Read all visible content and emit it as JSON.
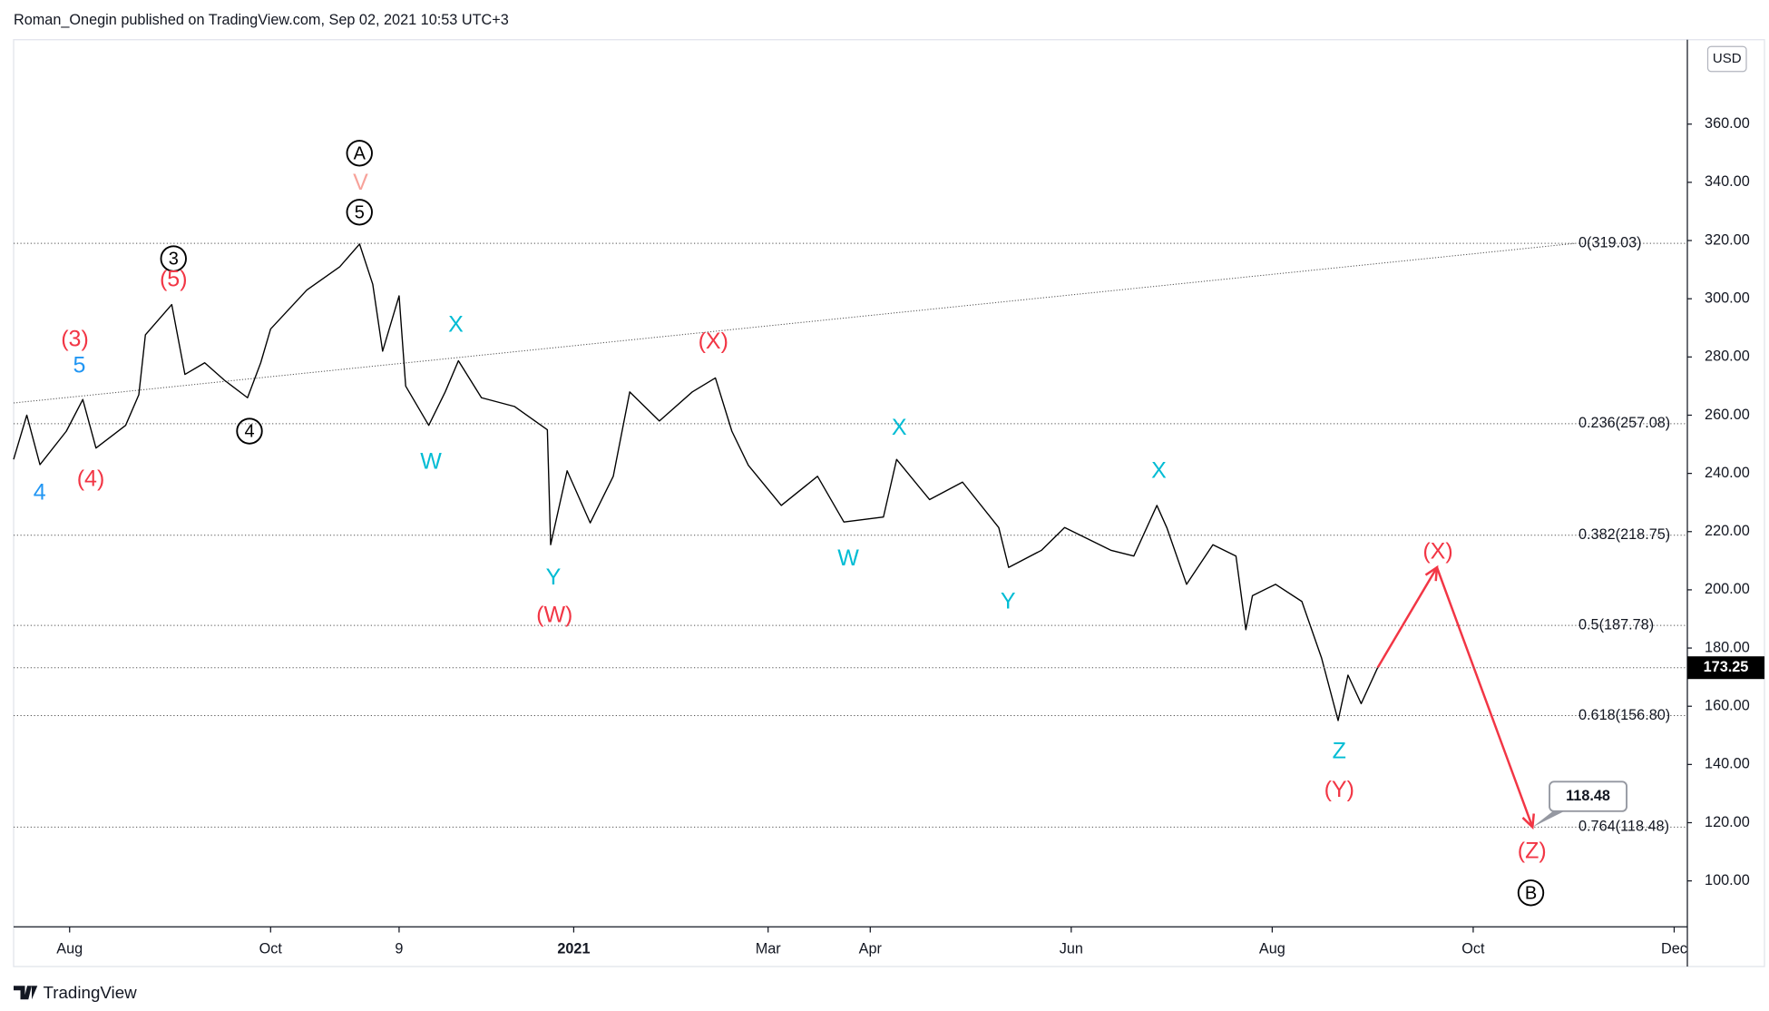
{
  "chart_data": {
    "type": "line",
    "title": "Roman_Onegin published on TradingView.com, Sep 02, 2021 10:53 UTC+3",
    "currency": "USD",
    "footer": "TradingView",
    "xlim": [
      -17,
      491
    ],
    "ylim": [
      85,
      389
    ],
    "xticks": [
      {
        "value": 0,
        "label": "Aug"
      },
      {
        "value": 61,
        "label": "Oct"
      },
      {
        "value": 100,
        "label": "9"
      },
      {
        "value": 153,
        "label": "2021"
      },
      {
        "value": 212,
        "label": "Mar"
      },
      {
        "value": 243,
        "label": "Apr"
      },
      {
        "value": 304,
        "label": "Jun"
      },
      {
        "value": 365,
        "label": "Aug"
      },
      {
        "value": 426,
        "label": "Oct"
      },
      {
        "value": 487,
        "label": "Dec"
      }
    ],
    "yticks": [
      {
        "value": 100,
        "label": "100.00"
      },
      {
        "value": 120,
        "label": "120.00"
      },
      {
        "value": 140,
        "label": "140.00"
      },
      {
        "value": 160,
        "label": "160.00"
      },
      {
        "value": 180,
        "label": "180.00"
      },
      {
        "value": 200,
        "label": "200.00"
      },
      {
        "value": 220,
        "label": "220.00"
      },
      {
        "value": 240,
        "label": "240.00"
      },
      {
        "value": 260,
        "label": "260.00"
      },
      {
        "value": 280,
        "label": "280.00"
      },
      {
        "value": 300,
        "label": "300.00"
      },
      {
        "value": 320,
        "label": "320.00"
      },
      {
        "value": 340,
        "label": "340.00"
      },
      {
        "value": 360,
        "label": "360.00"
      }
    ],
    "series": [
      {
        "color": "#000000",
        "x": [
          -17,
          -13,
          -9,
          -1,
          4,
          8,
          17,
          21,
          23,
          31,
          35,
          41,
          47,
          54,
          58,
          61,
          72,
          82,
          88,
          92,
          95,
          100,
          102,
          109,
          114,
          118,
          125,
          135,
          145,
          146,
          151,
          158,
          165,
          170,
          179,
          189,
          196,
          201,
          206,
          216,
          227,
          235,
          247,
          251,
          261,
          271,
          282,
          285,
          295,
          302,
          316,
          323,
          330,
          333,
          339,
          347,
          354,
          357,
          359,
          366,
          374,
          380,
          385,
          388,
          392,
          397
        ],
        "values": [
          244.8,
          260,
          243,
          254.5,
          265.4,
          248.7,
          256.5,
          267,
          287.6,
          298,
          274,
          278,
          272,
          266,
          278,
          289.6,
          303,
          311,
          318.8,
          305,
          282,
          301,
          270,
          256.5,
          268,
          278.7,
          266,
          263,
          255,
          215.5,
          240.9,
          223,
          239,
          268,
          258,
          268,
          272.8,
          254.5,
          242.8,
          229,
          239,
          223.3,
          225,
          244.8,
          231,
          237,
          221.4,
          207.7,
          213.6,
          221.4,
          213.6,
          211.6,
          229,
          221.4,
          201.9,
          215.5,
          211.6,
          186.3,
          198,
          201.9,
          196,
          176.5,
          155.1,
          170.7,
          160.9,
          173.25
        ]
      },
      {
        "color": "#f23645",
        "x": [
          397,
          415,
          444
        ],
        "values": [
          173.25,
          207.7,
          118.48
        ]
      }
    ],
    "trendline": {
      "x": [
        -17,
        457
      ],
      "values": [
        264.2,
        319.03
      ],
      "color": "#555555"
    },
    "levels": [
      {
        "value": 319.03,
        "label": "0(319.03)"
      },
      {
        "value": 257.08,
        "label": "0.236(257.08)"
      },
      {
        "value": 218.75,
        "label": "0.382(218.75)"
      },
      {
        "value": 187.78,
        "label": "0.5(187.78)"
      },
      {
        "value": 156.8,
        "label": "0.618(156.80)"
      },
      {
        "value": 118.48,
        "label": "0.764(118.48)"
      }
    ],
    "annotations": [
      {
        "text": "A",
        "color": "#000000",
        "circled": true
      },
      {
        "text": "V",
        "color": "#f7a29a",
        "circled": false
      },
      {
        "text": "5",
        "color": "#000000",
        "circled": true
      },
      {
        "text": "3",
        "color": "#000000",
        "circled": true
      },
      {
        "text": "(5)",
        "color": "#f23645",
        "circled": false
      },
      {
        "text": "(3)",
        "color": "#f23645",
        "circled": false
      },
      {
        "text": "5",
        "color": "#2196f3",
        "circled": false
      },
      {
        "text": "4",
        "color": "#000000",
        "circled": true
      },
      {
        "text": "4",
        "color": "#2196f3",
        "circled": false
      },
      {
        "text": "(4)",
        "color": "#f23645",
        "circled": false
      },
      {
        "text": "X",
        "color": "#00bcd4",
        "circled": false
      },
      {
        "text": "W",
        "color": "#00bcd4",
        "circled": false
      },
      {
        "text": "(X)",
        "color": "#f23645",
        "circled": false
      },
      {
        "text": "Y",
        "color": "#00bcd4",
        "circled": false
      },
      {
        "text": "(W)",
        "color": "#f23645",
        "circled": false
      },
      {
        "text": "X",
        "color": "#00bcd4",
        "circled": false
      },
      {
        "text": "W",
        "color": "#00bcd4",
        "circled": false
      },
      {
        "text": "Y",
        "color": "#00bcd4",
        "circled": false
      },
      {
        "text": "X",
        "color": "#00bcd4",
        "circled": false
      },
      {
        "text": "Z",
        "color": "#00bcd4",
        "circled": false
      },
      {
        "text": "(Y)",
        "color": "#f23645",
        "circled": false
      },
      {
        "text": "(X)",
        "color": "#f23645",
        "circled": false
      },
      {
        "text": "(Z)",
        "color": "#f23645",
        "circled": false
      },
      {
        "text": "B",
        "color": "#000000",
        "circled": true
      }
    ]
  }
}
